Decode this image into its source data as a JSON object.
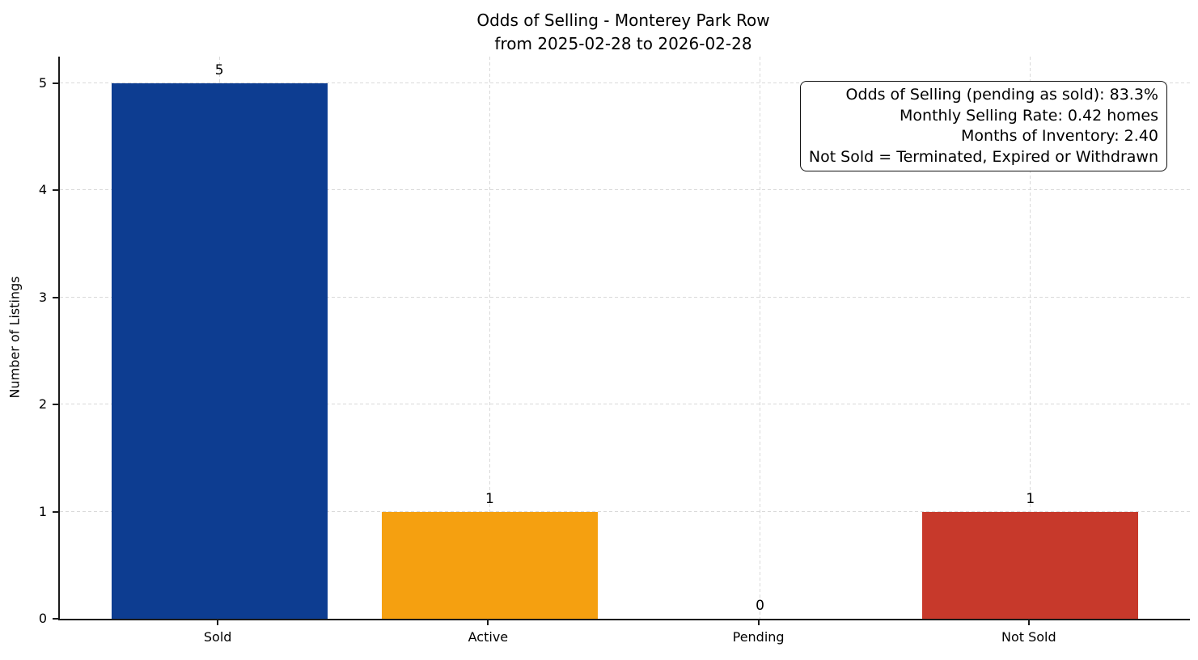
{
  "chart_data": {
    "type": "bar",
    "title": "Odds of Selling - Monterey Park Row",
    "subtitle": "from 2025-02-28 to 2026-02-28",
    "categories": [
      "Sold",
      "Active",
      "Pending",
      "Not Sold"
    ],
    "values": [
      5,
      1,
      0,
      1
    ],
    "value_labels": [
      "5",
      "1",
      "0",
      "1"
    ],
    "bar_colors": [
      "#0d3d91",
      "#f5a010",
      null,
      "#c7392b"
    ],
    "xlabel": "",
    "ylabel": "Number of Listings",
    "yticks": [
      0,
      1,
      2,
      3,
      4,
      5
    ],
    "ylim": [
      0,
      5.25
    ],
    "grid": true,
    "grid_style": "dashed",
    "legend": false,
    "annotation_box": {
      "position": "top-right",
      "lines": [
        "Odds of Selling (pending as sold): 83.3%",
        "Monthly Selling Rate: 0.42 homes",
        "Months of Inventory: 2.40",
        "Not Sold = Terminated, Expired or Withdrawn"
      ]
    }
  }
}
